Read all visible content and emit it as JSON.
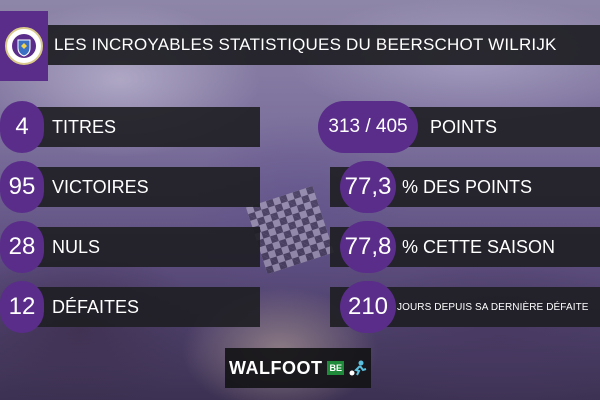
{
  "header": {
    "title": "LES INCROYABLES STATISTIQUES DU BEERSCHOT WILRIJK"
  },
  "left_stats": [
    {
      "value": "4",
      "label": "TITRES"
    },
    {
      "value": "95",
      "label": "VICTOIRES"
    },
    {
      "value": "28",
      "label": "NULS"
    },
    {
      "value": "12",
      "label": "DÉFAITES"
    }
  ],
  "right_stats": [
    {
      "value": "313 / 405",
      "label": "POINTS"
    },
    {
      "value": "77,3",
      "label": "% DES POINTS"
    },
    {
      "value": "77,8",
      "label": "% CETTE SAISON"
    },
    {
      "value": "210",
      "label": "JOURS DEPUIS SA DERNIÈRE DÉFAITE"
    }
  ],
  "footer": {
    "brand": "WALFOOT",
    "brand_suffix": "BE"
  },
  "colors": {
    "accent_purple": "#5a2d8a",
    "bar_dark": "#1e1e22"
  }
}
